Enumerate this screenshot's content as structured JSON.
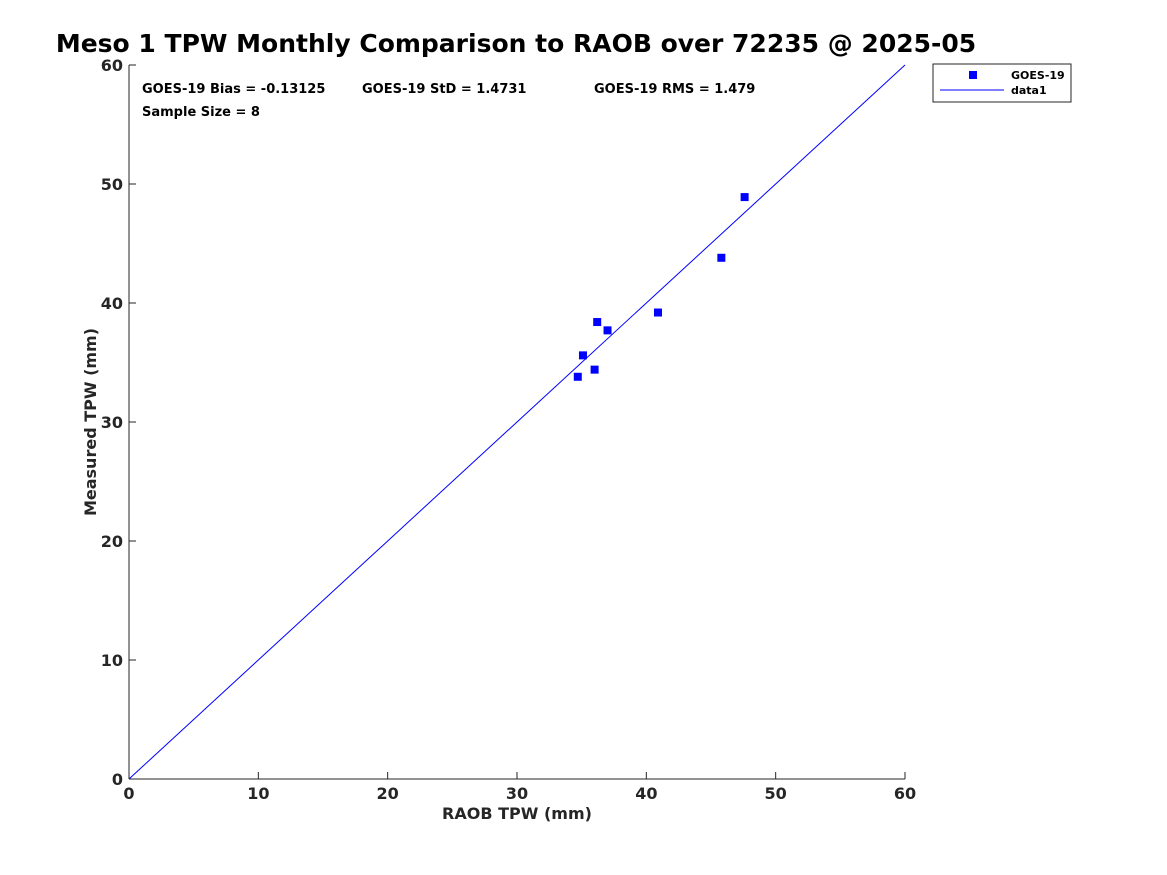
{
  "chart_data": {
    "type": "scatter",
    "title": "Meso 1 TPW Monthly Comparison to RAOB over 72235 @ 2025-05",
    "xlabel": "RAOB TPW (mm)",
    "ylabel": "Measured TPW (mm)",
    "xlim": [
      0,
      60
    ],
    "ylim": [
      0,
      60
    ],
    "xticks": [
      0,
      10,
      20,
      30,
      40,
      50,
      60
    ],
    "yticks": [
      0,
      10,
      20,
      30,
      40,
      50,
      60
    ],
    "grid": false,
    "legend_position": "top-right, outside axes",
    "series": [
      {
        "name": "GOES-19",
        "kind": "marker",
        "marker": "square",
        "color": "#0000ff",
        "points": [
          {
            "x": 34.7,
            "y": 33.8
          },
          {
            "x": 35.1,
            "y": 35.6
          },
          {
            "x": 36.0,
            "y": 34.4
          },
          {
            "x": 36.2,
            "y": 38.4
          },
          {
            "x": 37.0,
            "y": 37.7
          },
          {
            "x": 40.9,
            "y": 39.2
          },
          {
            "x": 45.8,
            "y": 43.8
          },
          {
            "x": 47.6,
            "y": 48.9
          }
        ]
      },
      {
        "name": "data1",
        "kind": "line",
        "color": "#0000ff",
        "points": [
          {
            "x": 0,
            "y": 0
          },
          {
            "x": 60,
            "y": 60
          }
        ]
      }
    ],
    "annotations": {
      "bias": "GOES-19 Bias = -0.13125",
      "std": "GOES-19 StD = 1.4731",
      "rms": "GOES-19 RMS = 1.479",
      "sample_size": "Sample Size = 8"
    }
  }
}
